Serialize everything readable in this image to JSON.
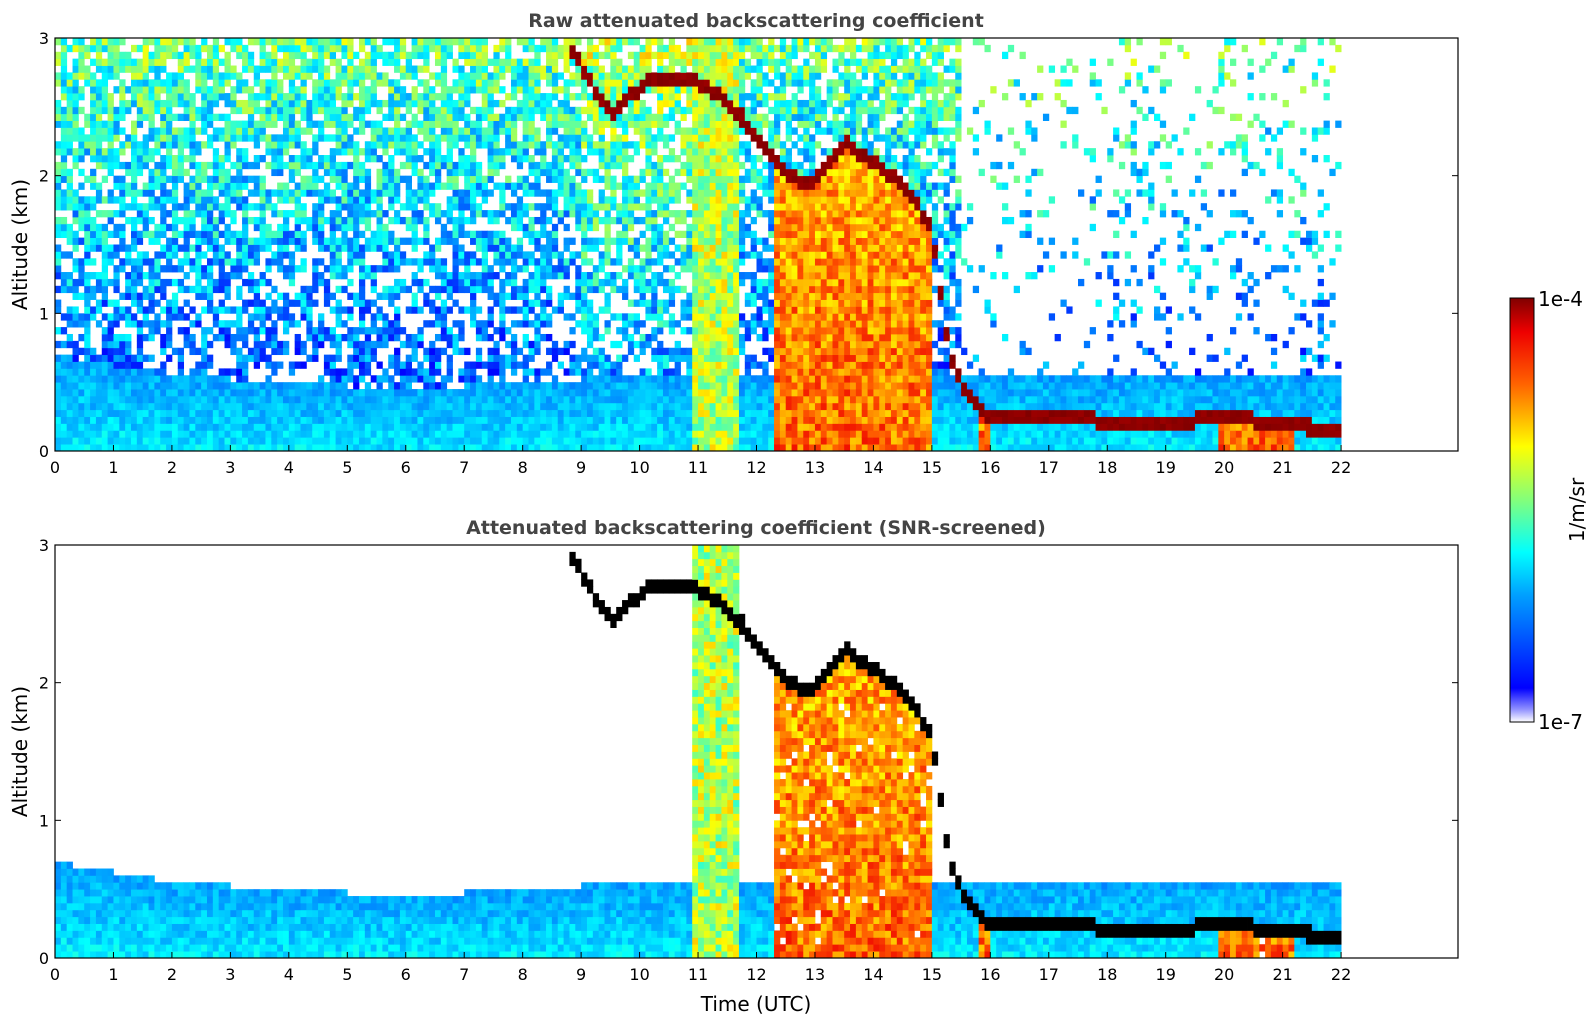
{
  "chart_data": [
    {
      "type": "heatmap",
      "title": "Raw attenuated backscattering coefficient",
      "xlabel": "",
      "ylabel": "Altitude (km)",
      "xlim": [
        0,
        24
      ],
      "ylim": [
        0,
        3
      ],
      "x_ticks": [
        "0",
        "1",
        "2",
        "3",
        "4",
        "5",
        "6",
        "7",
        "8",
        "9",
        "10",
        "11",
        "12",
        "13",
        "14",
        "15",
        "16",
        "17",
        "18",
        "19",
        "20",
        "21",
        "22"
      ],
      "y_ticks": [
        "0",
        "1",
        "2",
        "3"
      ],
      "data_extent_hours": [
        0,
        22
      ],
      "screened": false,
      "features": {
        "surface_layer_top_km": [
          [
            0,
            0.7
          ],
          [
            2,
            0.55
          ],
          [
            4,
            0.5
          ],
          [
            6,
            0.45
          ],
          [
            8,
            0.5
          ],
          [
            10,
            0.55
          ],
          [
            12,
            0.55
          ]
        ],
        "cloud_top_km": [
          [
            8.85,
            2.9
          ],
          [
            9.5,
            2.45
          ],
          [
            9.9,
            2.6
          ],
          [
            10.3,
            2.72
          ],
          [
            11.0,
            2.68
          ],
          [
            11.5,
            2.55
          ],
          [
            12.0,
            2.3
          ],
          [
            12.5,
            2.0
          ],
          [
            13.0,
            1.95
          ],
          [
            13.5,
            2.25
          ],
          [
            14.0,
            2.1
          ],
          [
            14.5,
            1.95
          ],
          [
            15.0,
            1.6
          ],
          [
            15.3,
            0.7
          ],
          [
            15.6,
            0.4
          ],
          [
            16.0,
            0.25
          ],
          [
            17.0,
            0.25
          ],
          [
            18.0,
            0.22
          ],
          [
            19.0,
            0.2
          ],
          [
            20.0,
            0.25
          ],
          [
            21.0,
            0.2
          ],
          [
            21.9,
            0.15
          ]
        ],
        "dense_columns_hours": [
          [
            12.25,
            13.2
          ],
          [
            13.2,
            14.3
          ],
          [
            14.3,
            15.0
          ],
          [
            15.85,
            16.0
          ],
          [
            19.9,
            21.2
          ]
        ]
      }
    },
    {
      "type": "heatmap",
      "title": "Attenuated backscattering coefficient (SNR-screened)",
      "xlabel": "Time (UTC)",
      "ylabel": "Altitude (km)",
      "xlim": [
        0,
        24
      ],
      "ylim": [
        0,
        3
      ],
      "x_ticks": [
        "0",
        "1",
        "2",
        "3",
        "4",
        "5",
        "6",
        "7",
        "8",
        "9",
        "10",
        "11",
        "12",
        "13",
        "14",
        "15",
        "16",
        "17",
        "18",
        "19",
        "20",
        "21",
        "22"
      ],
      "y_ticks": [
        "0",
        "1",
        "2",
        "3"
      ],
      "data_extent_hours": [
        0,
        22
      ],
      "screened": true
    }
  ],
  "colorbar": {
    "label": "1/m/sr",
    "min_label": "1e-7",
    "max_label": "1e-4",
    "min": 1e-07,
    "max": 0.0001,
    "scale": "log",
    "colormap": "jet"
  }
}
